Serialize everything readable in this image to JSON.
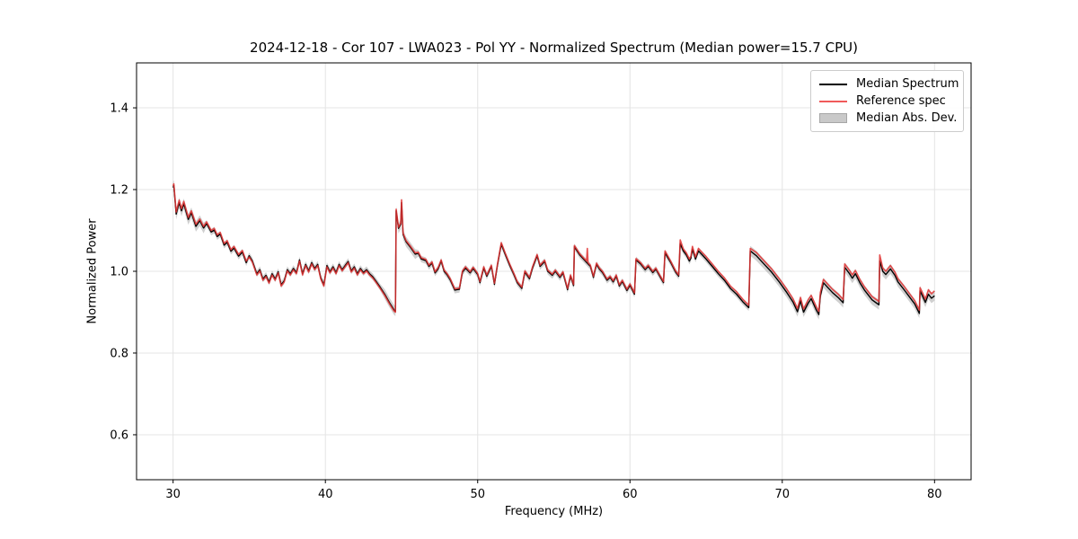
{
  "figure": {
    "title": "2024-12-18 - Cor 107 - LWA023 - Pol YY - Normalized Spectrum (Median power=15.7 CPU)",
    "xlabel": "Frequency (MHz)",
    "ylabel": "Normalized Power"
  },
  "legend": {
    "entries": [
      {
        "label": "Median Spectrum",
        "swatch": "line",
        "color": "#000000"
      },
      {
        "label": "Reference spec",
        "swatch": "line",
        "color": "#f05a5a"
      },
      {
        "label": "Median Abs. Dev.",
        "swatch": "patch",
        "color": "#c9c9c9",
        "edge": "#a6a6a6"
      }
    ]
  },
  "chart_data": {
    "type": "line",
    "title": "2024-12-18 - Cor 107 - LWA023 - Pol YY - Normalized Spectrum (Median power=15.7 CPU)",
    "xlabel": "Frequency (MHz)",
    "ylabel": "Normalized Power",
    "xlim": [
      27.6,
      82.4
    ],
    "ylim": [
      0.49,
      1.51
    ],
    "xticks": [
      30,
      40,
      50,
      60,
      70,
      80
    ],
    "yticks": [
      0.6,
      0.8,
      1.0,
      1.2,
      1.4
    ],
    "grid": true,
    "grid_color": "#e4e4e4",
    "legend_position": "upper right",
    "x": [
      30.0,
      30.05,
      30.2,
      30.4,
      30.55,
      30.7,
      31.0,
      31.2,
      31.5,
      31.75,
      32.0,
      32.2,
      32.5,
      32.7,
      32.9,
      33.1,
      33.35,
      33.55,
      33.8,
      34.0,
      34.3,
      34.55,
      34.8,
      35.0,
      35.2,
      35.5,
      35.7,
      35.9,
      36.1,
      36.3,
      36.5,
      36.7,
      36.9,
      37.1,
      37.3,
      37.5,
      37.7,
      37.9,
      38.1,
      38.3,
      38.5,
      38.7,
      38.9,
      39.1,
      39.3,
      39.5,
      39.7,
      39.9,
      40.1,
      40.3,
      40.5,
      40.7,
      40.9,
      41.1,
      41.3,
      41.5,
      41.7,
      41.9,
      42.1,
      42.3,
      42.5,
      42.7,
      42.9,
      43.1,
      43.3,
      43.6,
      43.9,
      44.2,
      44.5,
      44.6,
      44.65,
      44.8,
      44.95,
      45.0,
      45.1,
      45.3,
      45.6,
      45.9,
      46.1,
      46.3,
      46.6,
      46.8,
      47.0,
      47.2,
      47.4,
      47.6,
      47.8,
      48.0,
      48.2,
      48.5,
      48.8,
      49.0,
      49.2,
      49.5,
      49.7,
      50.0,
      50.15,
      50.4,
      50.6,
      50.9,
      51.1,
      51.3,
      51.55,
      51.8,
      52.1,
      52.4,
      52.6,
      52.9,
      53.1,
      53.4,
      53.6,
      53.9,
      54.1,
      54.4,
      54.6,
      54.9,
      55.1,
      55.4,
      55.6,
      55.9,
      56.1,
      56.3,
      56.35,
      56.7,
      57.0,
      57.15,
      57.2,
      57.25,
      57.4,
      57.6,
      57.8,
      58.0,
      58.2,
      58.5,
      58.7,
      58.9,
      59.1,
      59.3,
      59.5,
      59.8,
      60.0,
      60.3,
      60.4,
      60.7,
      61.0,
      61.2,
      61.5,
      61.7,
      62.0,
      62.2,
      62.3,
      62.7,
      63.0,
      63.2,
      63.3,
      63.5,
      63.7,
      63.9,
      64.0,
      64.1,
      64.3,
      64.5,
      64.7,
      65.0,
      65.4,
      65.8,
      66.2,
      66.6,
      67.0,
      67.4,
      67.8,
      67.9,
      68.3,
      68.8,
      69.3,
      69.8,
      70.3,
      70.7,
      71.0,
      71.2,
      71.4,
      71.7,
      71.9,
      72.2,
      72.4,
      72.5,
      72.7,
      73.0,
      73.3,
      73.7,
      74.0,
      74.1,
      74.4,
      74.6,
      74.8,
      75.1,
      75.4,
      75.9,
      76.2,
      76.35,
      76.4,
      76.6,
      76.8,
      77.1,
      77.4,
      77.6,
      78.0,
      78.3,
      78.7,
      79.0,
      79.05,
      79.2,
      79.4,
      79.6,
      79.8,
      80.0
    ],
    "series": [
      {
        "name": "Median Spectrum",
        "color": "#000000",
        "opacity": 1.0,
        "line_width": 1.4,
        "values": [
          1.205,
          1.21,
          1.14,
          1.168,
          1.148,
          1.165,
          1.127,
          1.143,
          1.11,
          1.124,
          1.106,
          1.117,
          1.096,
          1.101,
          1.085,
          1.091,
          1.064,
          1.071,
          1.049,
          1.057,
          1.037,
          1.047,
          1.021,
          1.038,
          1.026,
          0.994,
          1.004,
          0.981,
          0.99,
          0.974,
          0.994,
          0.981,
          0.999,
          0.967,
          0.977,
          1.004,
          0.994,
          1.007,
          0.997,
          1.028,
          0.994,
          1.017,
          1.001,
          1.021,
          1.007,
          1.017,
          0.984,
          0.967,
          1.014,
          0.999,
          1.011,
          0.997,
          1.017,
          1.004,
          1.014,
          1.024,
          1.001,
          1.011,
          0.994,
          1.007,
          0.997,
          1.004,
          0.994,
          0.987,
          0.977,
          0.961,
          0.944,
          0.924,
          0.906,
          0.902,
          1.148,
          1.105,
          1.115,
          1.168,
          1.09,
          1.072,
          1.058,
          1.042,
          1.044,
          1.03,
          1.026,
          1.012,
          1.02,
          0.996,
          1.006,
          1.025,
          1.0,
          0.991,
          0.979,
          0.954,
          0.956,
          0.998,
          1.008,
          0.996,
          1.007,
          0.992,
          0.972,
          1.008,
          0.988,
          1.012,
          0.968,
          1.015,
          1.066,
          1.042,
          1.015,
          0.99,
          0.972,
          0.958,
          0.998,
          0.982,
          1.008,
          1.038,
          1.012,
          1.024,
          1.0,
          0.99,
          1.0,
          0.985,
          0.996,
          0.955,
          0.988,
          0.965,
          1.06,
          1.04,
          1.028,
          1.022,
          1.02,
          1.018,
          1.012,
          0.985,
          1.017,
          1.005,
          0.997,
          0.978,
          0.985,
          0.974,
          0.988,
          0.964,
          0.975,
          0.953,
          0.966,
          0.944,
          1.028,
          1.018,
          1.004,
          1.012,
          0.997,
          1.005,
          0.985,
          0.972,
          1.045,
          1.02,
          0.998,
          0.988,
          1.068,
          1.05,
          1.04,
          1.025,
          1.032,
          1.054,
          1.03,
          1.05,
          1.042,
          1.03,
          1.012,
          0.994,
          0.978,
          0.958,
          0.944,
          0.926,
          0.911,
          1.05,
          1.038,
          1.018,
          0.998,
          0.974,
          0.948,
          0.925,
          0.901,
          0.928,
          0.9,
          0.922,
          0.933,
          0.908,
          0.894,
          0.94,
          0.972,
          0.96,
          0.948,
          0.935,
          0.923,
          1.01,
          0.995,
          0.983,
          0.994,
          0.972,
          0.954,
          0.93,
          0.922,
          0.918,
          1.025,
          1.0,
          0.992,
          1.006,
          0.99,
          0.974,
          0.955,
          0.94,
          0.92,
          0.897,
          0.952,
          0.94,
          0.924,
          0.944,
          0.934,
          0.94
        ]
      },
      {
        "name": "Reference spec",
        "color": "#e03131",
        "opacity": 0.85,
        "line_width": 1.6,
        "values": [
          1.209,
          1.214,
          1.145,
          1.174,
          1.153,
          1.171,
          1.132,
          1.148,
          1.115,
          1.128,
          1.11,
          1.121,
          1.1,
          1.105,
          1.089,
          1.095,
          1.068,
          1.075,
          1.053,
          1.061,
          1.041,
          1.051,
          1.025,
          1.035,
          1.023,
          0.991,
          1.001,
          0.978,
          0.987,
          0.971,
          0.991,
          0.978,
          0.996,
          0.964,
          0.974,
          1.001,
          0.991,
          1.004,
          0.994,
          1.025,
          0.991,
          1.014,
          0.998,
          1.018,
          1.004,
          1.014,
          0.981,
          0.964,
          1.011,
          0.996,
          1.008,
          0.994,
          1.014,
          1.001,
          1.011,
          1.021,
          0.998,
          1.008,
          0.991,
          1.004,
          0.994,
          1.001,
          0.991,
          0.984,
          0.974,
          0.958,
          0.941,
          0.921,
          0.903,
          0.9,
          1.152,
          1.108,
          1.118,
          1.175,
          1.093,
          1.075,
          1.061,
          1.045,
          1.047,
          1.033,
          1.029,
          1.015,
          1.023,
          0.999,
          1.009,
          1.028,
          1.003,
          0.994,
          0.982,
          0.957,
          0.959,
          1.001,
          1.011,
          0.999,
          1.01,
          0.995,
          0.975,
          1.011,
          0.991,
          1.015,
          0.971,
          1.018,
          1.07,
          1.045,
          1.018,
          0.993,
          0.975,
          0.961,
          1.001,
          0.985,
          1.011,
          1.041,
          1.015,
          1.027,
          1.003,
          0.993,
          1.003,
          0.988,
          0.999,
          0.958,
          0.991,
          0.968,
          1.063,
          1.043,
          1.031,
          1.025,
          1.056,
          1.021,
          1.015,
          0.988,
          1.02,
          1.008,
          1.0,
          0.981,
          0.988,
          0.977,
          0.991,
          0.967,
          0.978,
          0.956,
          0.969,
          0.947,
          1.031,
          1.021,
          1.007,
          1.015,
          1.0,
          1.008,
          0.988,
          0.975,
          1.05,
          1.023,
          1.001,
          0.991,
          1.077,
          1.055,
          1.045,
          1.03,
          1.037,
          1.061,
          1.035,
          1.056,
          1.048,
          1.036,
          1.018,
          1.0,
          0.984,
          0.964,
          0.95,
          0.932,
          0.917,
          1.056,
          1.046,
          1.026,
          1.006,
          0.982,
          0.956,
          0.933,
          0.909,
          0.936,
          0.908,
          0.93,
          0.941,
          0.916,
          0.902,
          0.948,
          0.98,
          0.968,
          0.956,
          0.943,
          0.931,
          1.018,
          1.003,
          0.991,
          1.002,
          0.98,
          0.962,
          0.938,
          0.93,
          0.926,
          1.04,
          1.008,
          1.0,
          1.014,
          0.998,
          0.982,
          0.963,
          0.948,
          0.928,
          0.905,
          0.96,
          0.948,
          0.932,
          0.955,
          0.945,
          0.952
        ]
      }
    ],
    "band": {
      "name": "Median Abs. Dev.",
      "around_series": "Median Spectrum",
      "color": "#909090",
      "opacity": 0.42,
      "halfwidth_default": 0.008,
      "halfwidth_regions": [
        [
          29.9,
          32.0,
          0.013
        ],
        [
          43.8,
          46.0,
          0.012
        ],
        [
          67.85,
          80.05,
          0.012
        ]
      ]
    }
  }
}
